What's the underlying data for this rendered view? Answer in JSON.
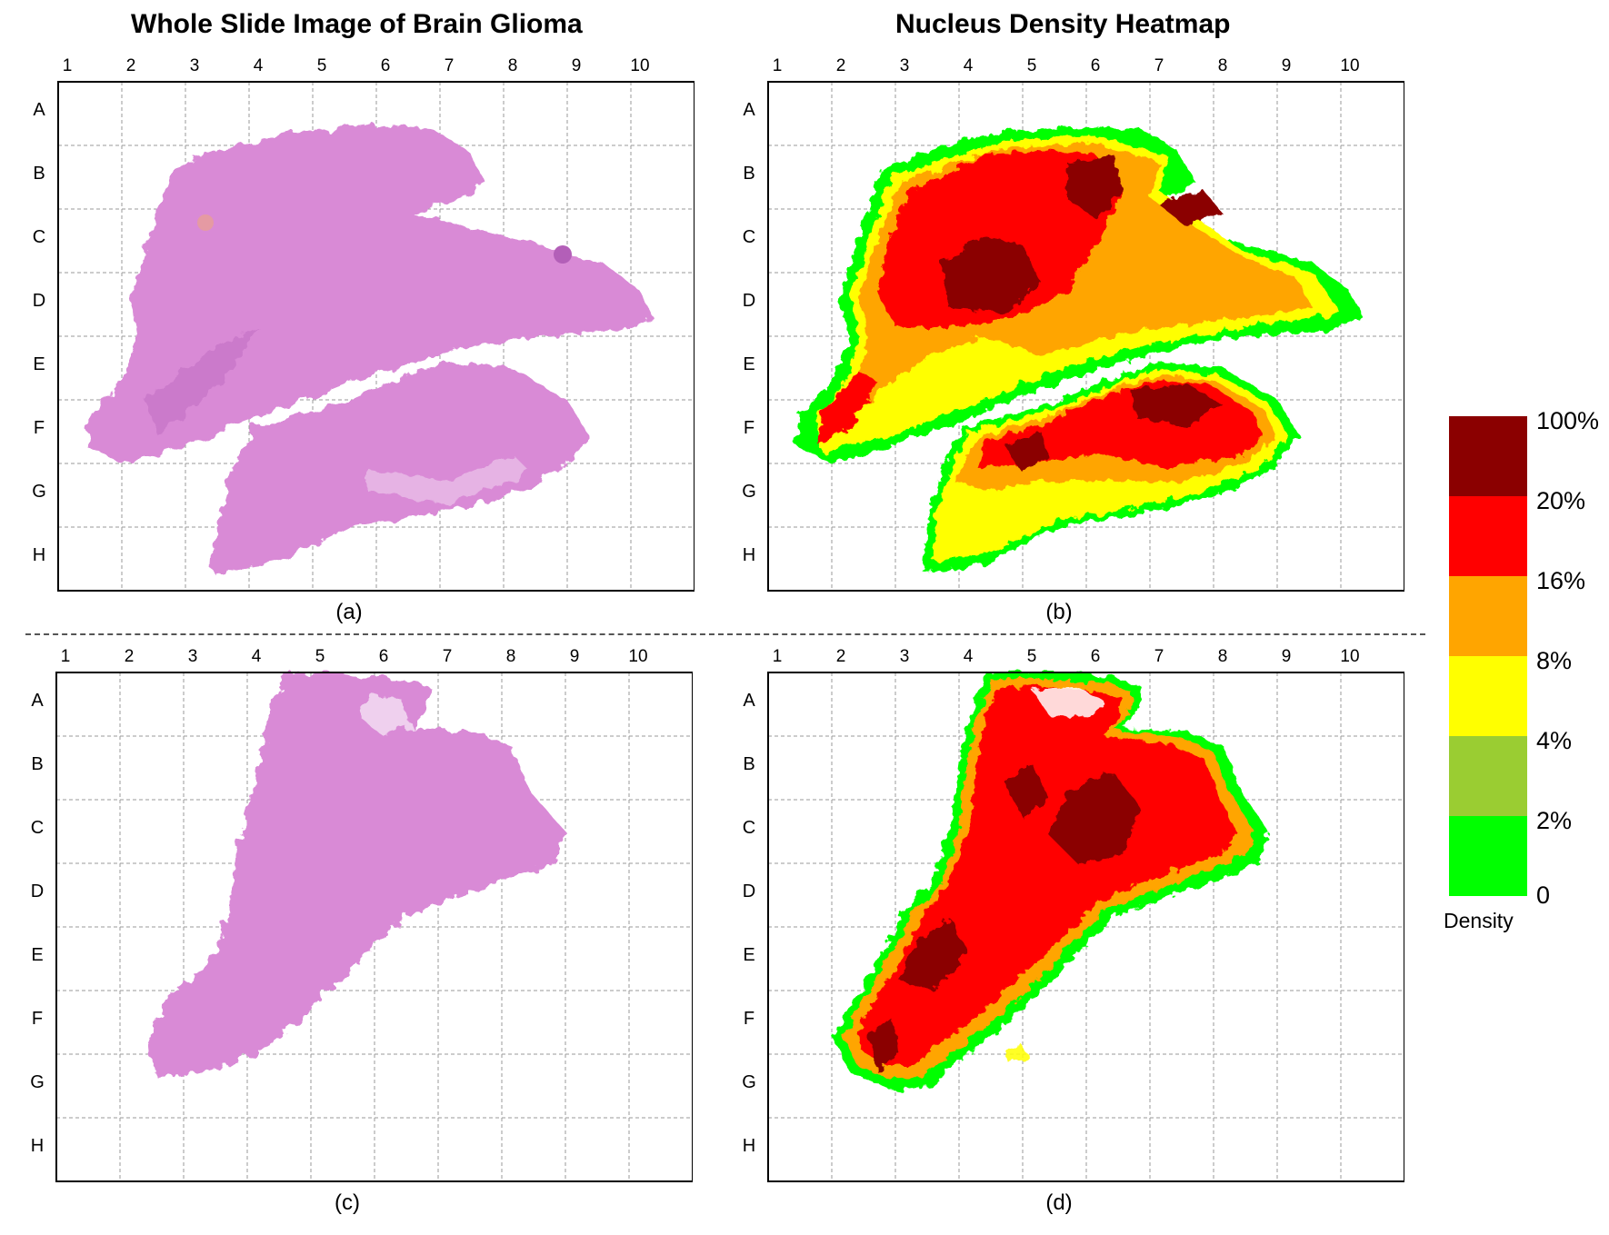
{
  "titles": {
    "left": "Whole Slide Image of Brain Glioma",
    "right": "Nucleus Density Heatmap"
  },
  "grid": {
    "columns": [
      "1",
      "2",
      "3",
      "4",
      "5",
      "6",
      "7",
      "8",
      "9",
      "10"
    ],
    "rows": [
      "A",
      "B",
      "C",
      "D",
      "E",
      "F",
      "G",
      "H"
    ]
  },
  "panels": [
    {
      "id": "a",
      "caption": "(a)",
      "kind": "slide"
    },
    {
      "id": "b",
      "caption": "(b)",
      "kind": "heatmap"
    },
    {
      "id": "c",
      "caption": "(c)",
      "kind": "slide"
    },
    {
      "id": "d",
      "caption": "(d)",
      "kind": "heatmap"
    }
  ],
  "legend": {
    "title": "Density",
    "labels": [
      "100%",
      "20%",
      "16%",
      "8%",
      "4%",
      "2%",
      "0"
    ],
    "colors": [
      "#8b0000",
      "#ff0000",
      "#ffa500",
      "#ffff00",
      "#9acd32",
      "#00ff00"
    ]
  },
  "colors": {
    "tissue_stain": "#d98ad6",
    "tissue_stain_dark": "#b35fb8",
    "grid_line": "#9a9a9a"
  }
}
